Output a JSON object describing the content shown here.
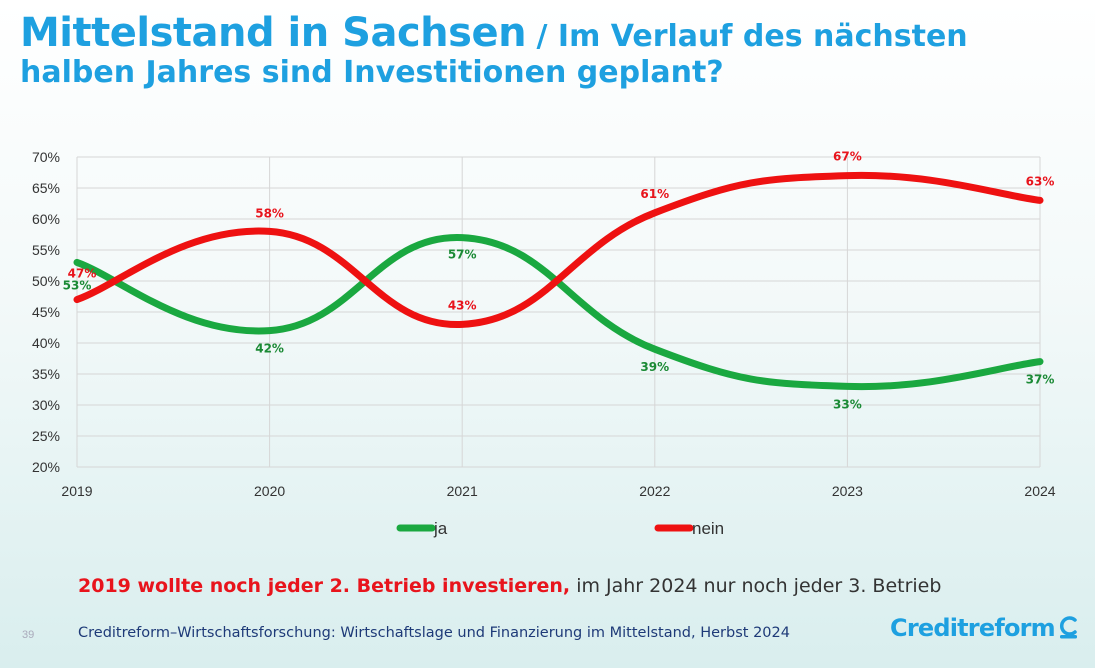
{
  "title": {
    "main": "Mittelstand in Sachsen",
    "sub_line1": " / Im Verlauf des nächsten",
    "sub_line2": "halben Jahres sind Investitionen geplant?"
  },
  "chart_data": {
    "type": "line",
    "x": [
      "2019",
      "2020",
      "2021",
      "2022",
      "2023",
      "2024"
    ],
    "ylim": [
      20,
      70
    ],
    "yticks": [
      "20%",
      "25%",
      "30%",
      "35%",
      "40%",
      "45%",
      "50%",
      "55%",
      "60%",
      "65%",
      "70%"
    ],
    "series": [
      {
        "name": "ja",
        "values": [
          53,
          42,
          57,
          39,
          33,
          37
        ],
        "labels": [
          "53%",
          "42%",
          "57%",
          "39%",
          "33%",
          "37%"
        ],
        "color": "#1aa840",
        "label_color": "#1b8a35"
      },
      {
        "name": "nein",
        "values": [
          47,
          58,
          43,
          61,
          67,
          63
        ],
        "labels": [
          "47%",
          "58%",
          "43%",
          "61%",
          "67%",
          "63%"
        ],
        "color": "#ee1111",
        "label_color": "#e8141c"
      }
    ],
    "grid": true,
    "legend_position": "bottom"
  },
  "summary": {
    "highlight": "2019 wollte noch jeder 2. Betrieb investieren,",
    "rest": " im Jahr 2024 nur noch jeder 3. Betrieb"
  },
  "footer": {
    "page_number": "39",
    "source": "Creditreform–Wirtschaftsforschung: Wirtschaftslage und Finanzierung im Mittelstand, Herbst 2024",
    "logo_text": "Creditreform"
  }
}
